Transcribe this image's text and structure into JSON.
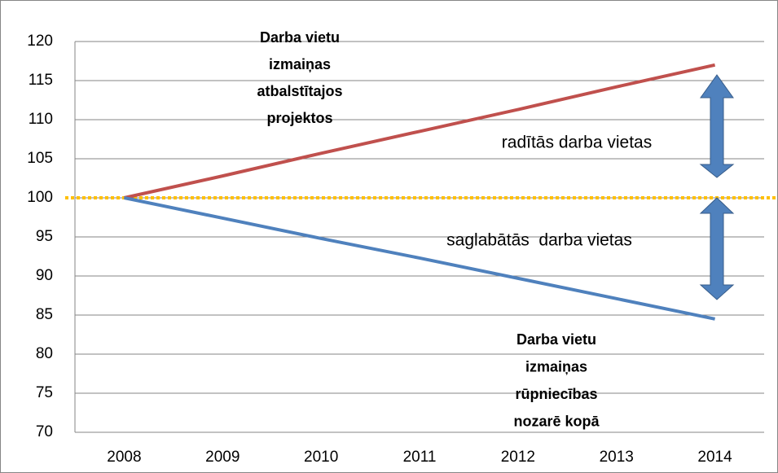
{
  "chart_data": {
    "type": "line",
    "categories": [
      "2008",
      "2009",
      "2010",
      "2011",
      "2012",
      "2013",
      "2014"
    ],
    "series": [
      {
        "color": "#c0504d",
        "values": [
          100,
          102.8,
          105.7,
          108.5,
          111.3,
          114.2,
          117
        ]
      },
      {
        "color": "#4f81bd",
        "values": [
          100,
          97.4,
          94.8,
          92.3,
          89.7,
          87.1,
          84.5
        ]
      }
    ],
    "reference_line": {
      "value": 100,
      "color": "#ffc000"
    },
    "ylim": [
      70,
      120
    ],
    "yticks": [
      70,
      75,
      80,
      85,
      90,
      95,
      100,
      105,
      110,
      115,
      120
    ],
    "grid": true,
    "annotations": [
      {
        "lines": [
          "Darba vietu",
          "izmaiņas",
          "atbalstītajos",
          "projektos"
        ]
      },
      {
        "lines": [
          "radītās darba vietas"
        ]
      },
      {
        "lines": [
          "saglabātās  darba vietas"
        ]
      },
      {
        "lines": [
          "Darba vietu",
          "izmaiņas",
          "rūpniecības",
          "nozarē kopā"
        ]
      }
    ]
  }
}
